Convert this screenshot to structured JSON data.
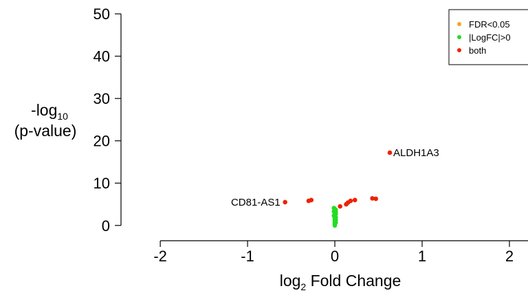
{
  "chart_data": {
    "type": "scatter",
    "title": "",
    "xlabel": {
      "pre": "log",
      "sub": "2",
      "post": " Fold Change"
    },
    "ylabel": {
      "pre": "-log",
      "sub": "10",
      "line2": "(p-value)"
    },
    "xlim": [
      -2.45,
      2.15
    ],
    "ylim": [
      -1.5,
      51
    ],
    "x_ticks": [
      -2,
      -1,
      0,
      1,
      2
    ],
    "y_ticks": [
      0,
      10,
      20,
      30,
      40,
      50
    ],
    "x_tick_labels": [
      "-2",
      "-1",
      "0",
      "1",
      "2"
    ],
    "y_tick_labels": [
      "0",
      "10",
      "20",
      "30",
      "40",
      "50"
    ],
    "legend": {
      "placement": "top-right",
      "entries": [
        {
          "label": "FDR<0.05",
          "color": "#f5a623"
        },
        {
          "label": "|LogFC|>0",
          "color": "#22dd22"
        },
        {
          "label": "both",
          "color": "#ee2200"
        }
      ]
    },
    "series": [
      {
        "name": "|LogFC|>0",
        "color": "#22dd22",
        "points": [
          [
            -0.01,
            4.1
          ],
          [
            0.0,
            3.9
          ],
          [
            0.01,
            3.7
          ],
          [
            0.0,
            3.5
          ],
          [
            -0.01,
            3.3
          ],
          [
            0.01,
            3.1
          ],
          [
            0.0,
            2.9
          ],
          [
            0.01,
            2.7
          ],
          [
            0.0,
            2.5
          ],
          [
            -0.01,
            2.3
          ],
          [
            0.0,
            2.1
          ],
          [
            0.01,
            1.9
          ],
          [
            0.0,
            1.7
          ],
          [
            0.0,
            1.5
          ],
          [
            0.01,
            1.3
          ],
          [
            0.0,
            1.1
          ],
          [
            0.0,
            0.9
          ],
          [
            0.01,
            0.7
          ],
          [
            0.0,
            0.5
          ],
          [
            0.0,
            0.3
          ],
          [
            0.0,
            0.0
          ]
        ]
      },
      {
        "name": "both",
        "color": "#ee2200",
        "points": [
          [
            -0.57,
            5.5
          ],
          [
            -0.3,
            5.8
          ],
          [
            -0.27,
            6.0
          ],
          [
            0.06,
            4.5
          ],
          [
            0.13,
            5.0
          ],
          [
            0.15,
            5.4
          ],
          [
            0.18,
            5.8
          ],
          [
            0.23,
            6.0
          ],
          [
            0.43,
            6.4
          ],
          [
            0.47,
            6.3
          ],
          [
            0.63,
            17.2
          ]
        ]
      }
    ],
    "annotations": [
      {
        "label": "ALDH1A3",
        "x": 0.63,
        "y": 17.2,
        "side": "right"
      },
      {
        "label": "CD81-AS1",
        "x": -0.57,
        "y": 5.5,
        "side": "left"
      }
    ]
  }
}
